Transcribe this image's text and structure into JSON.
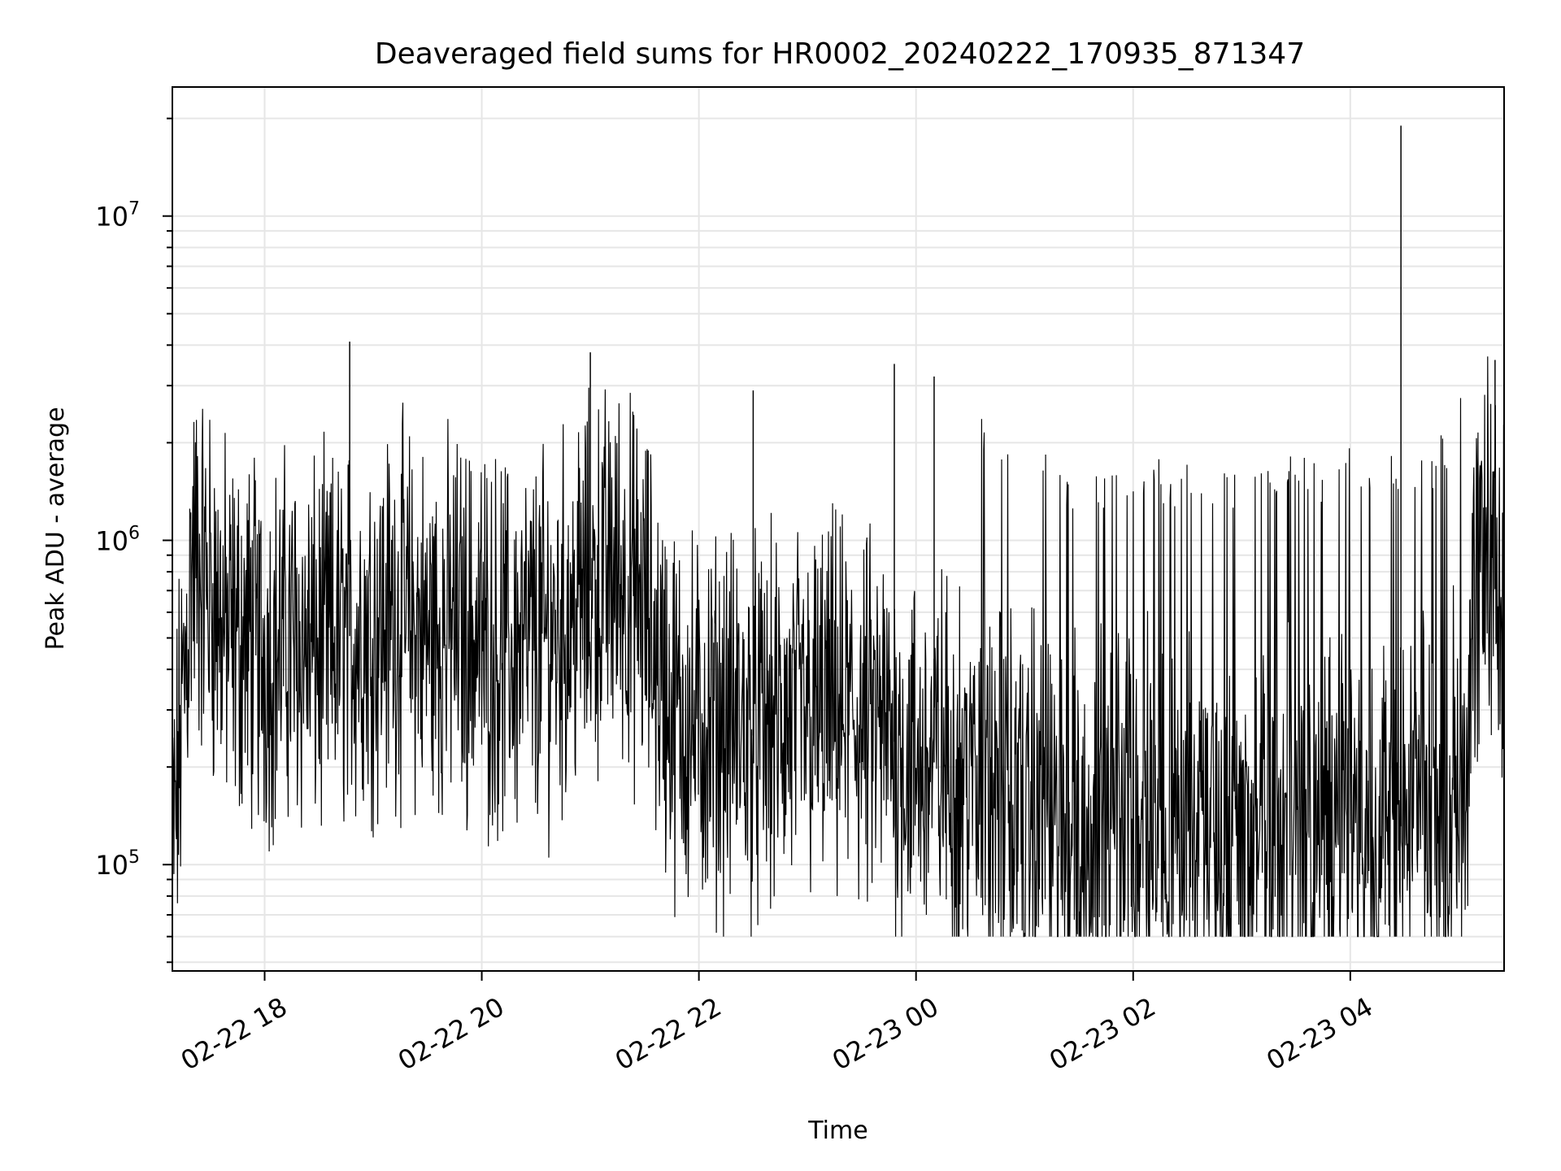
{
  "chart_data": {
    "type": "line",
    "title": "Deaveraged field sums for HR0002_20240222_170935_871347",
    "xlabel": "Time",
    "ylabel": "Peak ADU - average",
    "yscale": "log",
    "xlim": [
      "2024-02-22 17:09",
      "2024-02-23 05:25"
    ],
    "ylim": [
      47000,
      25000000
    ],
    "x_tick_labels": [
      "02-22 18",
      "02-22 20",
      "02-22 22",
      "02-23 00",
      "02-23 02",
      "02-23 04"
    ],
    "y_tick_labels": [
      {
        "base": "10",
        "exp": "5",
        "value": 100000
      },
      {
        "base": "10",
        "exp": "6",
        "value": 1000000
      },
      {
        "base": "10",
        "exp": "7",
        "value": 10000000
      }
    ],
    "grid": true,
    "line_color": "#000000",
    "series": [
      {
        "name": "",
        "x": [
          "2024-02-22 17:09",
          "2024-02-22 17:20",
          "2024-02-22 17:30",
          "2024-02-22 17:40",
          "2024-02-22 17:50",
          "2024-02-22 18:00",
          "2024-02-22 18:15",
          "2024-02-22 18:30",
          "2024-02-22 18:45",
          "2024-02-22 19:00",
          "2024-02-22 19:15",
          "2024-02-22 19:30",
          "2024-02-22 19:45",
          "2024-02-22 20:00",
          "2024-02-22 20:15",
          "2024-02-22 20:30",
          "2024-02-22 20:45",
          "2024-02-22 21:00",
          "2024-02-22 21:15",
          "2024-02-22 21:30",
          "2024-02-22 21:45",
          "2024-02-22 22:00",
          "2024-02-22 22:15",
          "2024-02-22 22:30",
          "2024-02-22 22:45",
          "2024-02-22 23:00",
          "2024-02-22 23:15",
          "2024-02-22 23:30",
          "2024-02-22 23:45",
          "2024-02-23 00:00",
          "2024-02-23 00:15",
          "2024-02-23 00:30",
          "2024-02-23 00:45",
          "2024-02-23 01:00",
          "2024-02-23 01:15",
          "2024-02-23 01:30",
          "2024-02-23 01:45",
          "2024-02-23 02:00",
          "2024-02-23 02:15",
          "2024-02-23 02:30",
          "2024-02-23 02:45",
          "2024-02-23 03:00",
          "2024-02-23 03:15",
          "2024-02-23 03:30",
          "2024-02-23 03:45",
          "2024-02-23 04:00",
          "2024-02-23 04:15",
          "2024-02-23 04:30",
          "2024-02-23 04:45",
          "2024-02-23 05:00",
          "2024-02-23 05:15",
          "2024-02-23 05:25"
        ],
        "y": [
          100000,
          900000,
          700000,
          500000,
          500000,
          450000,
          500000,
          450000,
          500000,
          550000,
          600000,
          500000,
          550000,
          500000,
          450000,
          480000,
          550000,
          700000,
          800000,
          600000,
          300000,
          260000,
          280000,
          250000,
          270000,
          280000,
          300000,
          270000,
          250000,
          200000,
          210000,
          180000,
          160000,
          150000,
          130000,
          120000,
          125000,
          130000,
          130000,
          125000,
          120000,
          120000,
          125000,
          130000,
          125000,
          140000,
          140000,
          130000,
          140000,
          180000,
          1000000,
          500000
        ]
      }
    ],
    "spikes": [
      {
        "x": "2024-02-22 18:47",
        "y": 4100000
      },
      {
        "x": "2024-02-22 21:00",
        "y": 3800000
      },
      {
        "x": "2024-02-22 23:48",
        "y": 3500000
      },
      {
        "x": "2024-02-23 00:10",
        "y": 3200000
      },
      {
        "x": "2024-02-22 22:30",
        "y": 2900000
      },
      {
        "x": "2024-02-23 04:28",
        "y": 19000000
      },
      {
        "x": "2024-02-23 05:20",
        "y": 3600000
      }
    ]
  }
}
